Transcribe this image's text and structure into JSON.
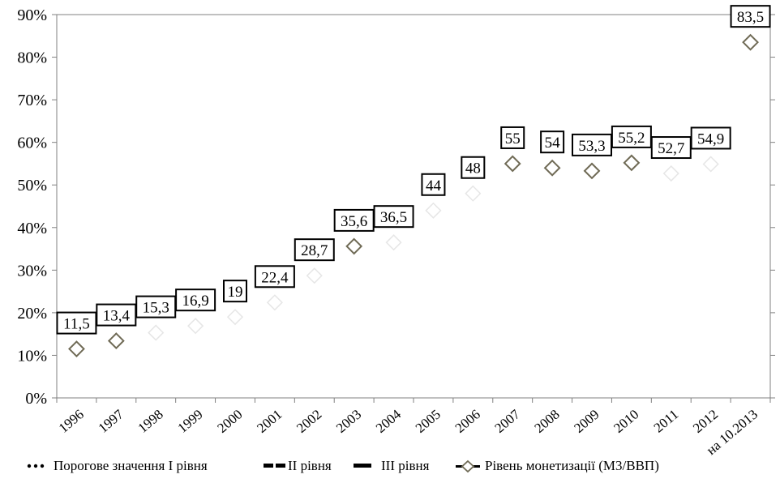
{
  "chart_data": {
    "type": "scatter",
    "title": "",
    "xlabel": "",
    "ylabel": "",
    "categories": [
      "1996",
      "1997",
      "1998",
      "1999",
      "2000",
      "2001",
      "2002",
      "2003",
      "2004",
      "2005",
      "2006",
      "2007",
      "2008",
      "2009",
      "2010",
      "2011",
      "2012",
      "на 10.2013"
    ],
    "y_ticks": [
      "0%",
      "10%",
      "20%",
      "30%",
      "40%",
      "50%",
      "60%",
      "70%",
      "80%",
      "90%"
    ],
    "ylim": [
      0,
      90
    ],
    "grid": false,
    "legend_position": "bottom",
    "series": [
      {
        "name": "Рівень монетизації  (М3/ВВП)",
        "values": [
          11.5,
          13.4,
          15.3,
          16.9,
          19,
          22.4,
          28.7,
          35.6,
          36.5,
          44,
          48,
          55,
          54,
          53.3,
          55.2,
          52.7,
          54.9,
          83.5
        ],
        "labels": [
          "11,5",
          "13,4",
          "15,3",
          "16,9",
          "19",
          "22,4",
          "28,7",
          "35,6",
          "36,5",
          "44",
          "48",
          "55",
          "54",
          "53,3",
          "55,2",
          "52,7",
          "54,9",
          "83,5"
        ],
        "visible": [
          true,
          true,
          false,
          false,
          false,
          false,
          false,
          true,
          false,
          false,
          false,
          true,
          true,
          true,
          true,
          false,
          false,
          true
        ],
        "marker": "diamond",
        "color": "#6f6a55"
      }
    ],
    "legend": [
      {
        "label": "Порогове значення  I рівня",
        "style": "dotted"
      },
      {
        "label": "II рівня",
        "style": "dashed"
      },
      {
        "label": "  III рівня",
        "style": "solid"
      },
      {
        "label": "Рівень монетизації  (М3/ВВП)",
        "style": "diamond-line"
      }
    ]
  }
}
